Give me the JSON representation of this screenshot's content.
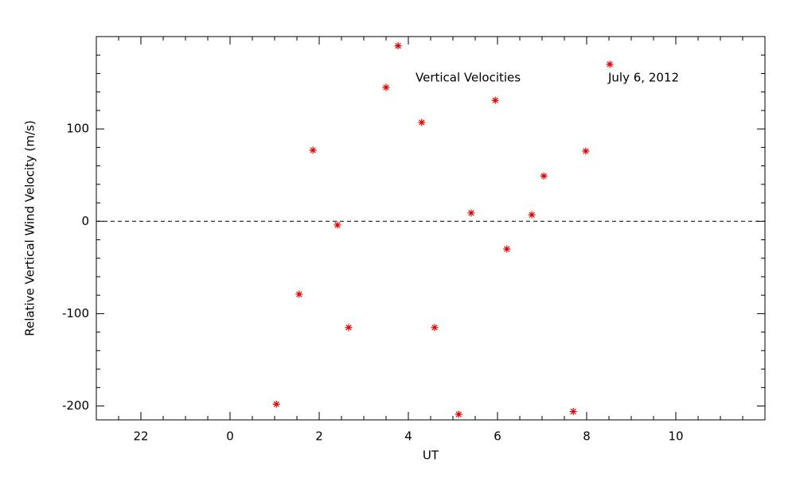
{
  "chart_data": {
    "type": "scatter",
    "xlabel": "UT",
    "ylabel": "Relative Vertical Wind Velocity (m/s)",
    "annotations": [
      "Vertical Velocities",
      "July 6, 2012"
    ],
    "color": "#e00000",
    "marker": "asterisk",
    "reference_line": 0,
    "minor_ticks": {
      "x": 4,
      "y": 5
    },
    "xlim": [
      -3,
      12
    ],
    "xticks": [
      {
        "value": -2,
        "label": "22"
      },
      0,
      2,
      4,
      6,
      8,
      10
    ],
    "ylim": [
      -215,
      200
    ],
    "yticks": [
      -200,
      -100,
      0,
      100
    ],
    "x": [
      1.04,
      1.55,
      1.86,
      2.41,
      2.66,
      3.5,
      3.77,
      4.3,
      4.59,
      5.13,
      5.41,
      5.95,
      6.21,
      6.77,
      7.04,
      7.7,
      7.98,
      8.52
    ],
    "values": [
      -198,
      -79,
      77,
      -4,
      -115,
      145,
      190,
      107,
      -115,
      -209,
      9,
      131,
      -30,
      7,
      49,
      -206,
      76,
      170
    ]
  }
}
